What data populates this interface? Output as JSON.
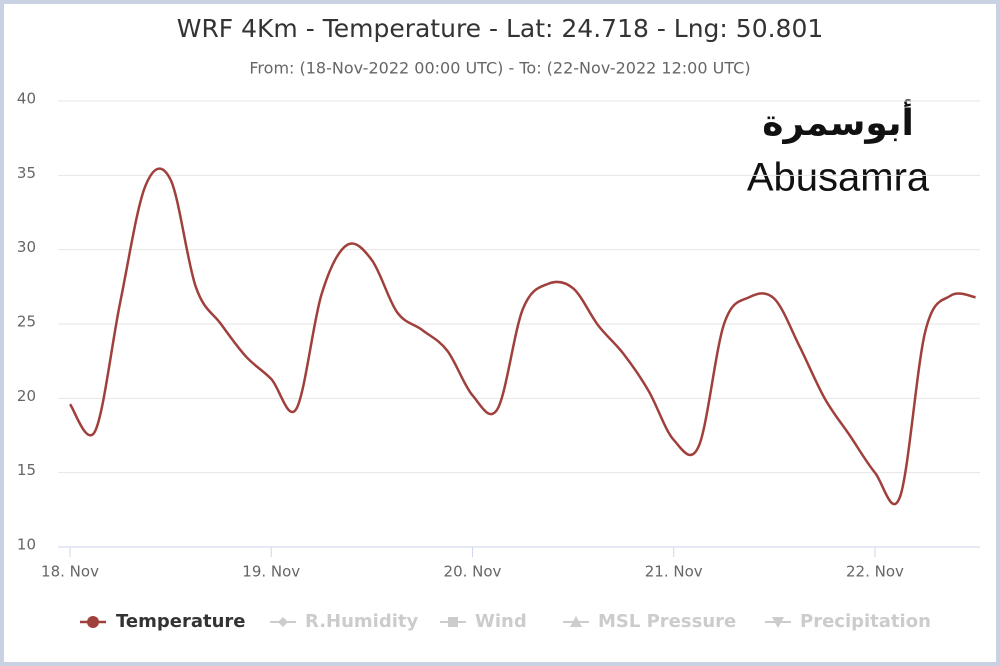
{
  "chart_data": {
    "type": "line",
    "title": "WRF 4Km - Temperature - Lat: 24.718 - Lng: 50.801",
    "subtitle": "From: (18-Nov-2022 00:00 UTC) - To: (22-Nov-2022 12:00 UTC)",
    "annotations": [
      "أبوسمرة",
      "Abusamra"
    ],
    "x": [
      0,
      3,
      6,
      9,
      12,
      15,
      18,
      21,
      24,
      27,
      30,
      33,
      36,
      39,
      42,
      45,
      48,
      51,
      54,
      57,
      60,
      63,
      66,
      69,
      72,
      75,
      78,
      81,
      84,
      87,
      90,
      93,
      96,
      99,
      102,
      105,
      108
    ],
    "series": [
      {
        "name": "Temperature",
        "color": "#a0403c",
        "values": [
          19.6,
          17.8,
          26.5,
          34.3,
          34.7,
          27.5,
          25.0,
          22.8,
          21.3,
          19.3,
          27.0,
          30.3,
          29.3,
          25.8,
          24.6,
          23.2,
          20.2,
          19.3,
          26.0,
          27.7,
          27.4,
          24.9,
          23.0,
          20.5,
          17.2,
          16.8,
          25.0,
          26.8,
          26.7,
          23.5,
          20.0,
          17.5,
          15.0,
          13.4,
          24.5,
          26.9,
          26.8
        ]
      }
    ],
    "legend_inactive": [
      "R.Humidity",
      "Wind",
      "MSL Pressure",
      "Precipitation"
    ],
    "xlim": [
      0,
      108
    ],
    "xticks": [
      {
        "value": 0,
        "label": "18. Nov"
      },
      {
        "value": 24,
        "label": "19. Nov"
      },
      {
        "value": 48,
        "label": "20. Nov"
      },
      {
        "value": 72,
        "label": "21. Nov"
      },
      {
        "value": 96,
        "label": "22. Nov"
      }
    ],
    "ylim": [
      10,
      40
    ],
    "yticks": [
      10,
      15,
      20,
      25,
      30,
      35,
      40
    ],
    "grid": true
  }
}
